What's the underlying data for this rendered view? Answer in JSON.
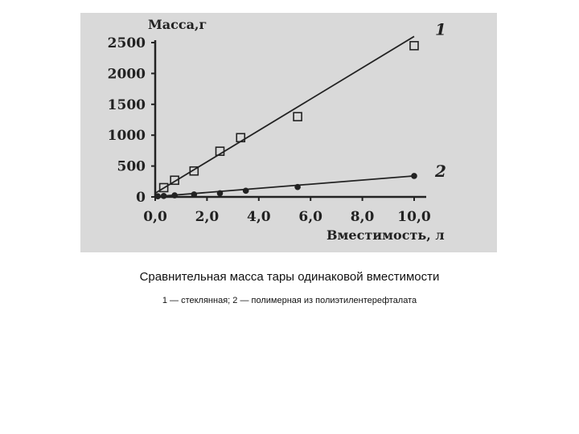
{
  "chart_data": {
    "type": "line",
    "ylabel": "Масса,г",
    "xlabel": "Вместимость, л",
    "xlim": [
      0,
      10
    ],
    "ylim": [
      0,
      2500
    ],
    "xticks": [
      "0,0",
      "2,0",
      "4,0",
      "6,0",
      "8,0",
      "10,0"
    ],
    "yticks": [
      "0",
      "500",
      "1000",
      "1500",
      "2000",
      "2500"
    ],
    "grid": false,
    "series": [
      {
        "name": "1",
        "marker": "square",
        "points": [
          [
            0.33,
            150
          ],
          [
            0.75,
            270
          ],
          [
            1.5,
            420
          ],
          [
            2.5,
            740
          ],
          [
            3.3,
            960
          ],
          [
            5.5,
            1300
          ],
          [
            10.0,
            2450
          ]
        ],
        "fit": [
          [
            0.0,
            60
          ],
          [
            10.0,
            2600
          ]
        ]
      },
      {
        "name": "2",
        "marker": "dot",
        "points": [
          [
            0.1,
            10
          ],
          [
            0.33,
            15
          ],
          [
            0.75,
            25
          ],
          [
            1.5,
            40
          ],
          [
            2.5,
            60
          ],
          [
            3.5,
            100
          ],
          [
            5.5,
            160
          ],
          [
            10.0,
            340
          ]
        ],
        "fit": [
          [
            0.0,
            5
          ],
          [
            10.0,
            340
          ]
        ]
      }
    ]
  },
  "caption": "Сравнительная масса тары одинаковой вместимости",
  "legend_note": "1   — стеклянная; 2 — полимерная из полиэтилентерефталата"
}
